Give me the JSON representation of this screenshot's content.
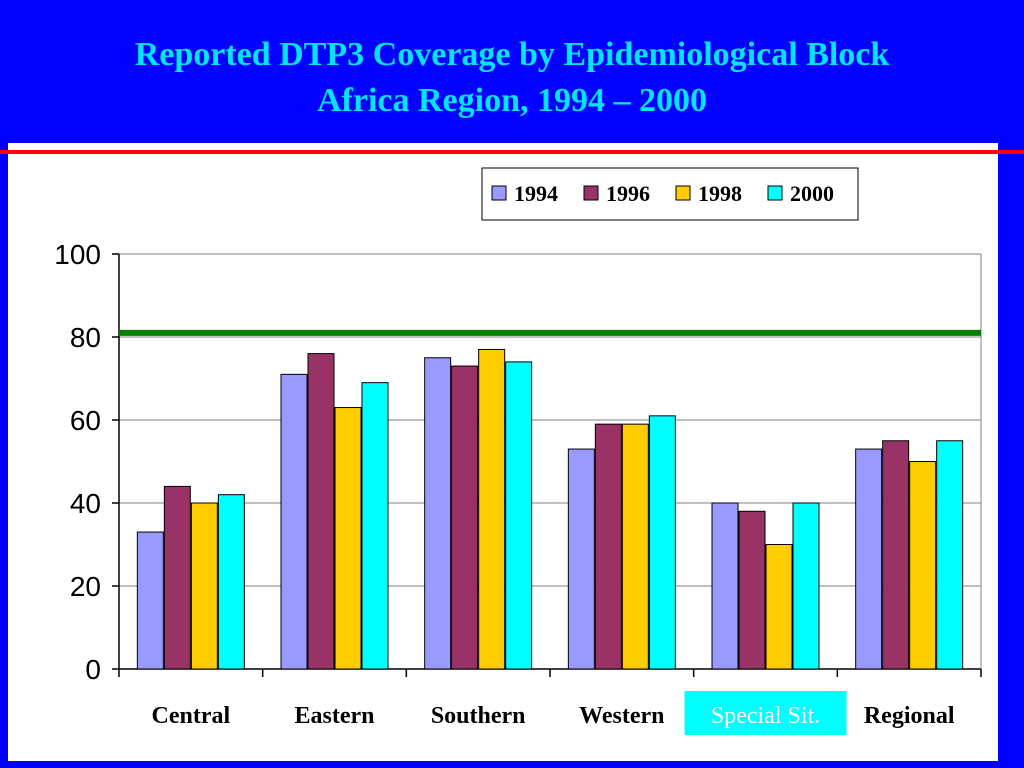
{
  "slide": {
    "title_line1": "Reported DTP3 Coverage by Epidemiological Block",
    "title_line2": "Africa Region, 1994 – 2000",
    "background_color": "#0000ff",
    "title_color": "#00e5ff",
    "rule_color": "#ff0000"
  },
  "chart_data": {
    "type": "bar",
    "categories": [
      "Central",
      "Eastern",
      "Southern",
      "Western",
      "Special Sit.",
      "Regional"
    ],
    "highlighted_category": "Special Sit.",
    "highlight_color": "#00ffff",
    "series": [
      {
        "name": "1994",
        "color": "#9999ff",
        "values": [
          33,
          71,
          75,
          53,
          40,
          53
        ]
      },
      {
        "name": "1996",
        "color": "#993366",
        "values": [
          44,
          76,
          73,
          59,
          38,
          55
        ]
      },
      {
        "name": "1998",
        "color": "#ffcc00",
        "values": [
          40,
          63,
          77,
          59,
          30,
          50
        ]
      },
      {
        "name": "2000",
        "color": "#00ffff",
        "values": [
          42,
          69,
          74,
          61,
          40,
          55
        ]
      }
    ],
    "ylim": [
      0,
      100
    ],
    "yticks": [
      0,
      20,
      40,
      60,
      80,
      100
    ],
    "reference_line": {
      "value": 81,
      "color": "#008000"
    },
    "grid": true,
    "legend_position": "top-right"
  }
}
